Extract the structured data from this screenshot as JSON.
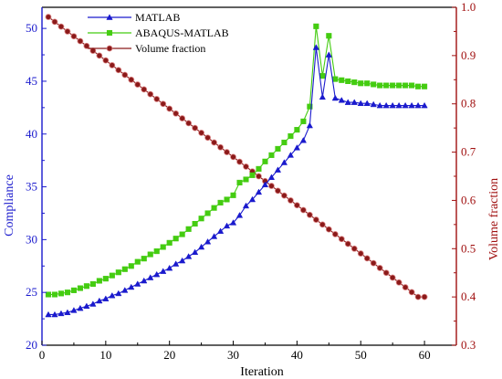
{
  "chart_data": {
    "type": "line",
    "title": "",
    "xlabel": "Iteration",
    "ylabel_left": "Compliance",
    "ylabel_right": "Volume fraction",
    "xlim": [
      0,
      65
    ],
    "ylim_left": [
      20,
      52
    ],
    "ylim_right": [
      0.3,
      1.0
    ],
    "x_ticks": [
      0,
      10,
      20,
      30,
      40,
      50,
      60
    ],
    "y_left_ticks": [
      20,
      25,
      30,
      35,
      40,
      45,
      50
    ],
    "y_right_ticks": [
      0.3,
      0.4,
      0.5,
      0.6,
      0.7,
      0.8,
      0.9,
      1.0
    ],
    "grid": false,
    "legend_position": "top-left",
    "series": [
      {
        "name": "MATLAB",
        "axis": "left",
        "color": "#1a1acd",
        "marker": "triangle",
        "x": [
          1,
          2,
          3,
          4,
          5,
          6,
          7,
          8,
          9,
          10,
          11,
          12,
          13,
          14,
          15,
          16,
          17,
          18,
          19,
          20,
          21,
          22,
          23,
          24,
          25,
          26,
          27,
          28,
          29,
          30,
          31,
          32,
          33,
          34,
          35,
          36,
          37,
          38,
          39,
          40,
          41,
          42,
          43,
          44,
          45,
          46,
          47,
          48,
          49,
          50,
          51,
          52,
          53,
          54,
          55,
          56,
          57,
          58,
          59,
          60
        ],
        "values": [
          22.9,
          22.9,
          23.0,
          23.1,
          23.3,
          23.5,
          23.7,
          23.9,
          24.2,
          24.4,
          24.7,
          24.9,
          25.2,
          25.5,
          25.8,
          26.1,
          26.4,
          26.7,
          27.0,
          27.3,
          27.7,
          28.0,
          28.4,
          28.8,
          29.3,
          29.8,
          30.3,
          30.8,
          31.3,
          31.6,
          32.3,
          33.2,
          33.8,
          34.5,
          35.2,
          35.9,
          36.6,
          37.3,
          38.0,
          38.7,
          39.4,
          40.8,
          48.2,
          43.5,
          47.5,
          43.4,
          43.2,
          43.0,
          43.0,
          42.9,
          42.9,
          42.8,
          42.7,
          42.7,
          42.7,
          42.7,
          42.7,
          42.7,
          42.7,
          42.7
        ]
      },
      {
        "name": "ABAQUS-MATLAB",
        "axis": "left",
        "color": "#44cc11",
        "marker": "square",
        "x": [
          1,
          2,
          3,
          4,
          5,
          6,
          7,
          8,
          9,
          10,
          11,
          12,
          13,
          14,
          15,
          16,
          17,
          18,
          19,
          20,
          21,
          22,
          23,
          24,
          25,
          26,
          27,
          28,
          29,
          30,
          31,
          32,
          33,
          34,
          35,
          36,
          37,
          38,
          39,
          40,
          41,
          42,
          43,
          44,
          45,
          46,
          47,
          48,
          49,
          50,
          51,
          52,
          53,
          54,
          55,
          56,
          57,
          58,
          59,
          60
        ],
        "values": [
          24.8,
          24.8,
          24.9,
          25.0,
          25.2,
          25.4,
          25.6,
          25.8,
          26.1,
          26.3,
          26.6,
          26.9,
          27.2,
          27.5,
          27.9,
          28.2,
          28.6,
          28.9,
          29.3,
          29.7,
          30.1,
          30.5,
          31.0,
          31.5,
          32.0,
          32.5,
          33.0,
          33.5,
          33.8,
          34.2,
          35.4,
          35.7,
          36.1,
          36.7,
          37.4,
          38.0,
          38.6,
          39.2,
          39.8,
          40.4,
          41.2,
          42.6,
          50.2,
          45.5,
          49.3,
          45.2,
          45.1,
          45.0,
          44.9,
          44.8,
          44.8,
          44.7,
          44.6,
          44.6,
          44.6,
          44.6,
          44.6,
          44.6,
          44.5,
          44.5
        ]
      },
      {
        "name": "Volume fraction",
        "axis": "right",
        "color": "#8b1a1a",
        "marker": "circle",
        "x": [
          1,
          2,
          3,
          4,
          5,
          6,
          7,
          8,
          9,
          10,
          11,
          12,
          13,
          14,
          15,
          16,
          17,
          18,
          19,
          20,
          21,
          22,
          23,
          24,
          25,
          26,
          27,
          28,
          29,
          30,
          31,
          32,
          33,
          34,
          35,
          36,
          37,
          38,
          39,
          40,
          41,
          42,
          43,
          44,
          45,
          46,
          47,
          48,
          49,
          50,
          51,
          52,
          53,
          54,
          55,
          56,
          57,
          58,
          59,
          60
        ],
        "values": [
          0.98,
          0.97,
          0.96,
          0.95,
          0.94,
          0.93,
          0.92,
          0.91,
          0.9,
          0.89,
          0.88,
          0.87,
          0.86,
          0.85,
          0.84,
          0.83,
          0.82,
          0.81,
          0.8,
          0.79,
          0.78,
          0.77,
          0.76,
          0.75,
          0.74,
          0.73,
          0.72,
          0.71,
          0.7,
          0.69,
          0.68,
          0.67,
          0.66,
          0.65,
          0.64,
          0.63,
          0.62,
          0.61,
          0.6,
          0.59,
          0.58,
          0.57,
          0.56,
          0.55,
          0.54,
          0.53,
          0.52,
          0.51,
          0.5,
          0.49,
          0.48,
          0.47,
          0.46,
          0.45,
          0.44,
          0.43,
          0.42,
          0.41,
          0.4,
          0.4
        ]
      }
    ]
  }
}
